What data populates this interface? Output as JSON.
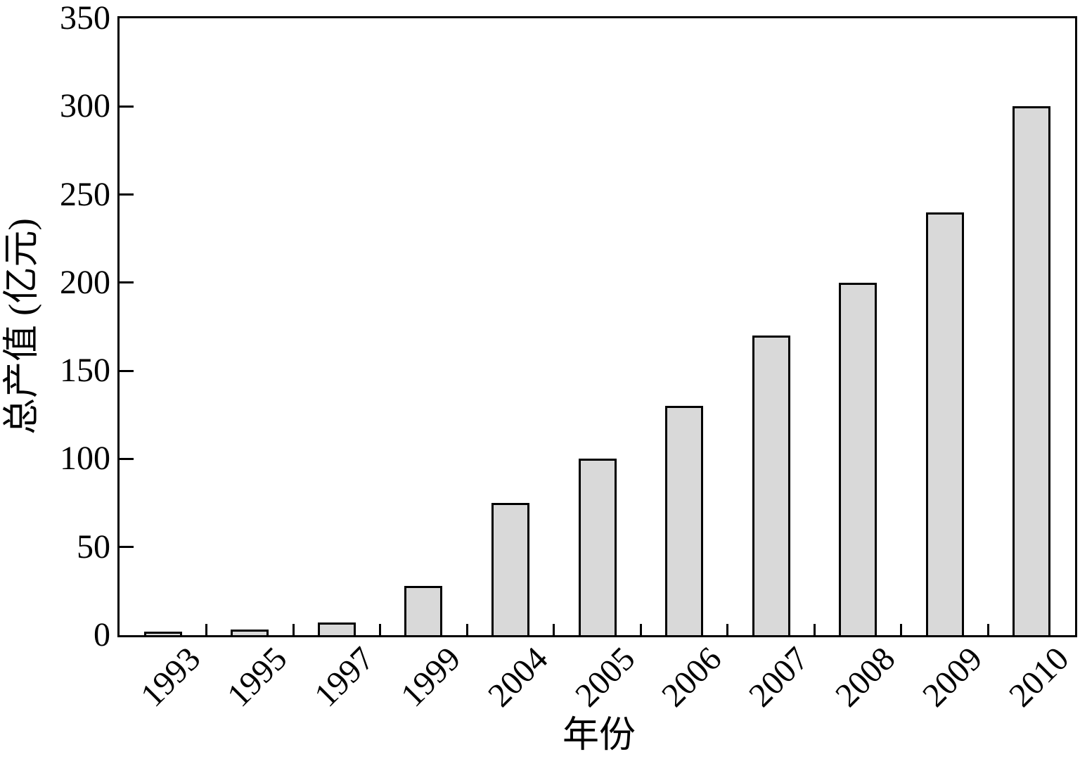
{
  "figure": {
    "background": "#ffffff",
    "text_color": "#000000"
  },
  "chart_data": {
    "type": "bar",
    "title": "",
    "categories": [
      "1993",
      "1995",
      "1997",
      "1999",
      "2004",
      "2005",
      "2006",
      "2007",
      "2008",
      "2009",
      "2010"
    ],
    "values": [
      1.5,
      3,
      7,
      28,
      75,
      100,
      130,
      170,
      200,
      240,
      300
    ],
    "xlabel": "年份",
    "ylabel": "总产值 (亿元)",
    "ylim": [
      0,
      350
    ],
    "yticks": [
      0,
      50,
      100,
      150,
      200,
      250,
      300,
      350
    ],
    "grid": false,
    "legend": "none",
    "tick_direction": "in",
    "xtick_label_rotation_deg": 45,
    "bar_fill": "#d9d9d9",
    "bar_border": "#000000",
    "axis_color": "#000000"
  }
}
